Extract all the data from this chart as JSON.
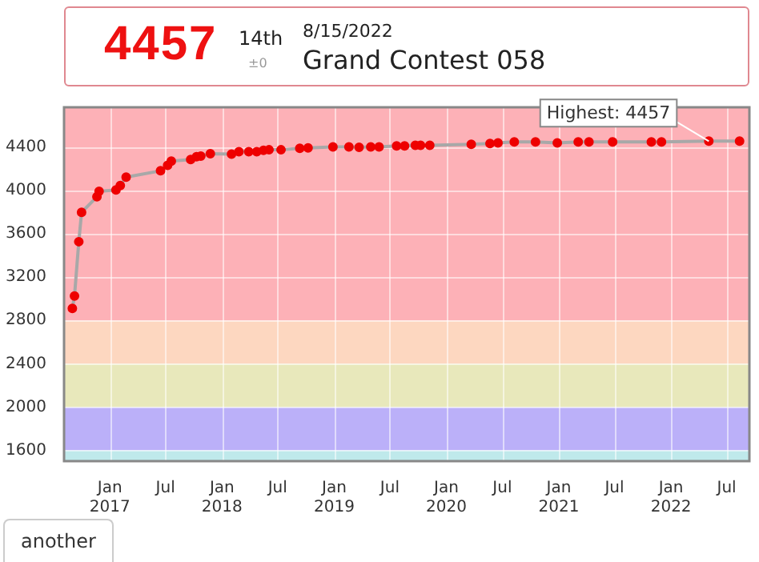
{
  "chart_data": {
    "type": "line",
    "x": [
      "2016-09-01",
      "2016-09-08",
      "2016-09-22",
      "2016-10-01",
      "2016-11-20",
      "2016-11-27",
      "2017-01-21",
      "2017-02-04",
      "2017-02-23",
      "2017-06-15",
      "2017-07-08",
      "2017-07-20",
      "2017-09-21",
      "2017-10-10",
      "2017-10-24",
      "2017-11-24",
      "2018-02-01",
      "2018-02-25",
      "2018-03-29",
      "2018-04-24",
      "2018-05-16",
      "2018-06-03",
      "2018-07-12",
      "2018-09-11",
      "2018-10-08",
      "2018-12-28",
      "2019-02-18",
      "2019-03-23",
      "2019-04-30",
      "2019-05-27",
      "2019-07-23",
      "2019-08-18",
      "2019-09-22",
      "2019-10-09",
      "2019-11-08",
      "2020-03-22",
      "2020-05-22",
      "2020-06-17",
      "2020-08-09",
      "2020-10-17",
      "2020-12-27",
      "2021-03-05",
      "2021-04-09",
      "2021-06-25",
      "2021-10-29",
      "2021-12-01",
      "2022-05-04",
      "2022-08-12"
    ],
    "series": [
      {
        "color": "#ee0000",
        "values": [
          2912,
          3026,
          3528,
          3799,
          3943,
          3993,
          4007,
          4047,
          4124,
          4183,
          4233,
          4273,
          4287,
          4314,
          4319,
          4341,
          4337,
          4359,
          4359,
          4359,
          4373,
          4377,
          4377,
          4391,
          4395,
          4404,
          4404,
          4400,
          4404,
          4404,
          4413,
          4413,
          4418,
          4418,
          4418,
          4427,
          4436,
          4440,
          4450,
          4450,
          4440,
          4450,
          4450,
          4450,
          4450,
          4450,
          4457,
          4457
        ]
      }
    ],
    "xlim": [
      "2016-08-05",
      "2022-09-13"
    ],
    "xticks": [
      {
        "value": "2017-01",
        "label": "Jan 2017"
      },
      {
        "value": "2017-07",
        "label": "Jul"
      },
      {
        "value": "2018-01",
        "label": "Jan 2018"
      },
      {
        "value": "2018-07",
        "label": "Jul"
      },
      {
        "value": "2019-01",
        "label": "Jan 2019"
      },
      {
        "value": "2019-07",
        "label": "Jul"
      },
      {
        "value": "2020-01",
        "label": "Jan 2020"
      },
      {
        "value": "2020-07",
        "label": "Jul"
      },
      {
        "value": "2021-01",
        "label": "Jan 2021"
      },
      {
        "value": "2021-07",
        "label": "Jul"
      },
      {
        "value": "2022-01",
        "label": "Jan 2022"
      },
      {
        "value": "2022-07",
        "label": "Jul"
      }
    ],
    "ylim": [
      1500,
      4770
    ],
    "yticks": [
      1600,
      2000,
      2400,
      2800,
      3200,
      3600,
      4000,
      4400
    ],
    "bands": [
      {
        "axis": "y",
        "from": 1500,
        "to": 1600,
        "color": "#bfe9eb"
      },
      {
        "axis": "y",
        "from": 1600,
        "to": 2000,
        "color": "#bbb0f9"
      },
      {
        "axis": "y",
        "from": 2000,
        "to": 2400,
        "color": "#e8e8bb"
      },
      {
        "axis": "y",
        "from": 2400,
        "to": 2800,
        "color": "#fdd7c0"
      },
      {
        "axis": "y",
        "from": 2800,
        "to": 4770,
        "color": "#fdb1b7"
      }
    ],
    "annotations": [
      "4457",
      "14th",
      "±0",
      "8/15/2022",
      "Grand Contest 058",
      "another",
      {
        "text": "Highest: 4457",
        "x": "2022-05-04",
        "y": 4457
      }
    ],
    "grid": true,
    "legend": false,
    "marker": "circle",
    "line_style": "solid"
  }
}
